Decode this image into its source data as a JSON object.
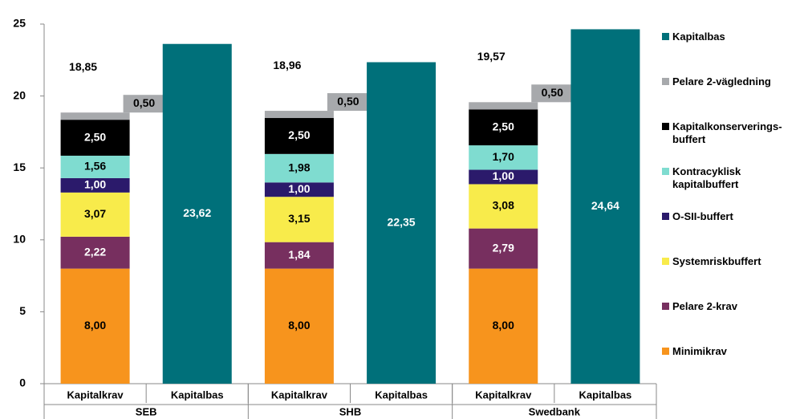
{
  "chart_data": {
    "type": "stacked_bar",
    "categories": [
      "Kapitalkrav",
      "Kapitalbas",
      "Kapitalkrav",
      "Kapitalbas",
      "Kapitalkrav",
      "Kapitalbas"
    ],
    "groups": [
      "SEB",
      "SHB",
      "Swedbank"
    ],
    "series": [
      {
        "name": "Minimikrav",
        "color": "#f7941d",
        "values": [
          8.0,
          null,
          8.0,
          null,
          8.0,
          null
        ],
        "value_labels": [
          "8,00",
          null,
          "8,00",
          null,
          "8,00",
          null
        ]
      },
      {
        "name": "Pelare 2-krav",
        "color": "#772f5f",
        "values": [
          2.22,
          null,
          1.84,
          null,
          2.79,
          null
        ],
        "value_labels": [
          "2,22",
          null,
          "1,84",
          null,
          "2,79",
          null
        ]
      },
      {
        "name": "Systemriskbuffert",
        "color": "#f8eb4b",
        "values": [
          3.07,
          null,
          3.15,
          null,
          3.08,
          null
        ],
        "value_labels": [
          "3,07",
          null,
          "3,15",
          null,
          "3,08",
          null
        ]
      },
      {
        "name": "O-SII-buffert",
        "color": "#2b1a6b",
        "values": [
          1.0,
          null,
          1.0,
          null,
          1.0,
          null
        ],
        "value_labels": [
          "1,00",
          null,
          "1,00",
          null,
          "1,00",
          null
        ]
      },
      {
        "name": "Kontracyklisk\nkapitalbuffert",
        "color": "#7fdcd0",
        "values": [
          1.56,
          null,
          1.98,
          null,
          1.7,
          null
        ],
        "value_labels": [
          "1,56",
          null,
          "1,98",
          null,
          "1,70",
          null
        ]
      },
      {
        "name": "Kapitalkonserverings-\nbuffert",
        "color": "#000000",
        "values": [
          2.5,
          null,
          2.5,
          null,
          2.5,
          null
        ],
        "value_labels": [
          "2,50",
          null,
          "2,50",
          null,
          "2,50",
          null
        ]
      },
      {
        "name": "Pelare 2-vägledning",
        "color": "#a7a9ac",
        "values": [
          0.5,
          null,
          0.5,
          null,
          0.5,
          null
        ],
        "value_labels": [
          "0,50",
          null,
          "0,50",
          null,
          "0,50",
          null
        ]
      },
      {
        "name": "Kapitalbas",
        "color": "#00707a",
        "values": [
          null,
          23.62,
          null,
          22.35,
          null,
          24.64
        ],
        "value_labels": [
          null,
          "23,62",
          null,
          "22,35",
          null,
          "24,64"
        ]
      }
    ],
    "totals": [
      18.85,
      null,
      18.96,
      null,
      19.57,
      null
    ],
    "total_labels": [
      "18,85",
      null,
      "18,96",
      null,
      "19,57",
      null
    ],
    "ylim": [
      0,
      25
    ],
    "yticks": [
      0,
      5,
      10,
      15,
      20,
      25
    ]
  }
}
